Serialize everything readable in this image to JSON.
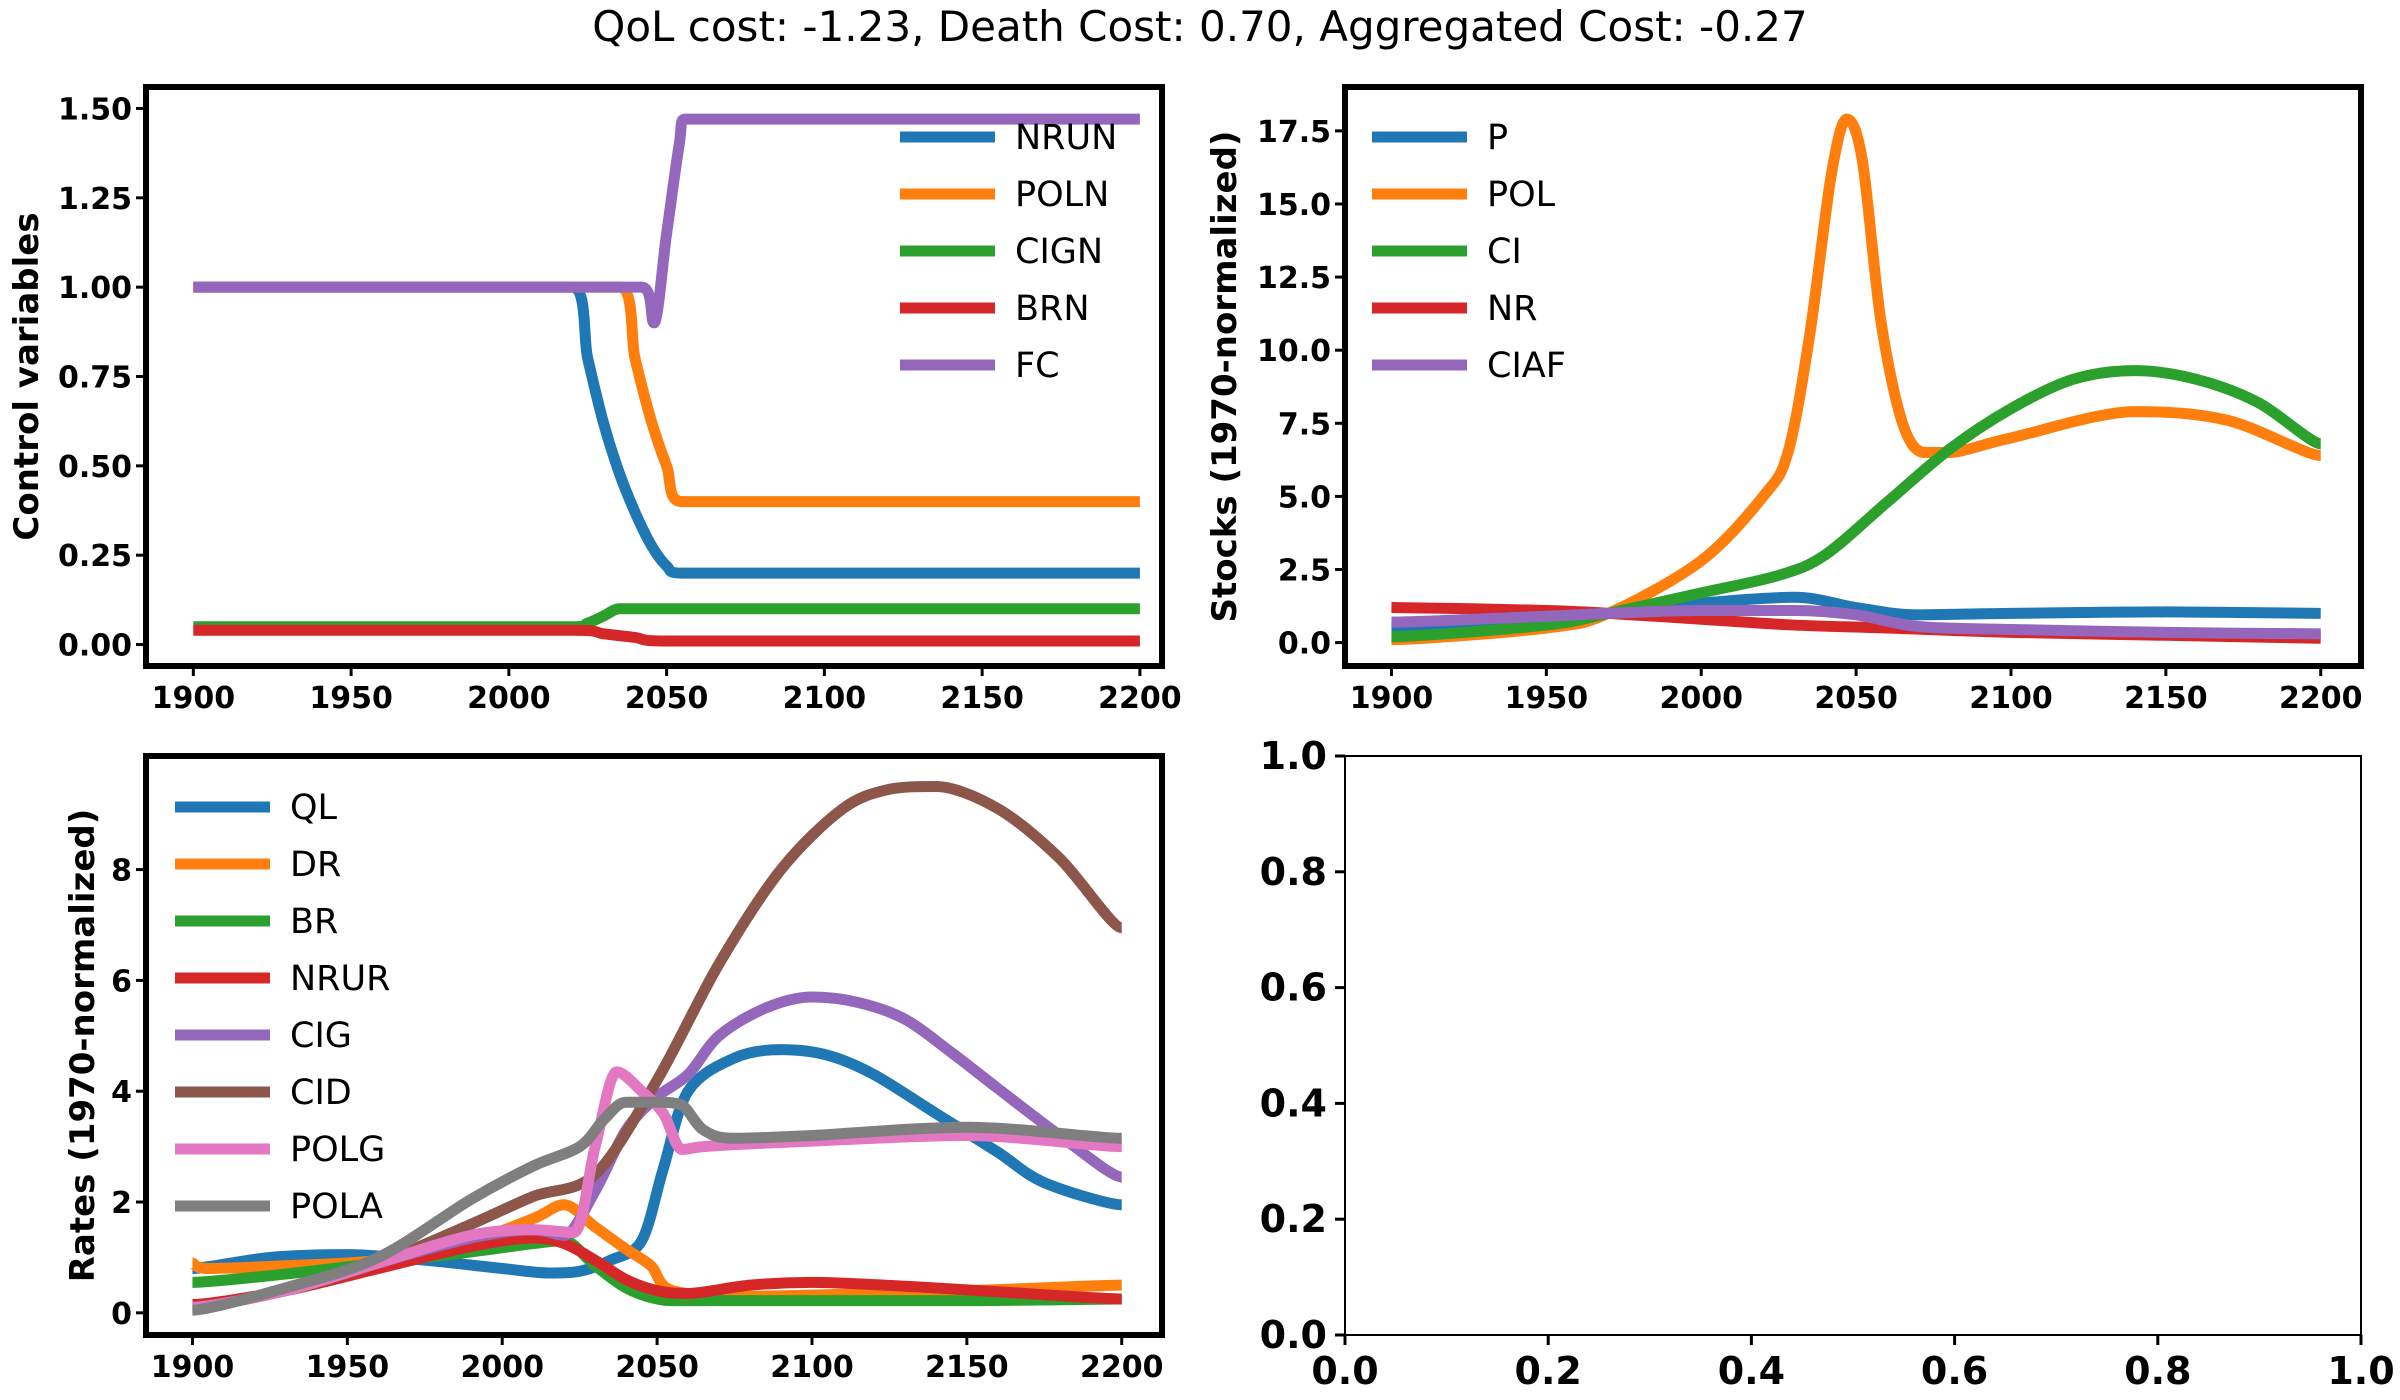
{
  "suptitle": "QoL cost: -1.23, Death Cost: 0.70, Aggregated Cost: -0.27",
  "chart_data": [
    {
      "type": "line",
      "ylabel": "Control variables",
      "xlim": [
        1885,
        2207
      ],
      "ylim": [
        -0.06,
        1.56
      ],
      "xticks": [
        1900,
        1950,
        2000,
        2050,
        2100,
        2150,
        2200
      ],
      "xtick_labels": [
        "1900",
        "1950",
        "2000",
        "2050",
        "2100",
        "2150",
        "2200"
      ],
      "yticks": [
        0,
        0.25,
        0.5,
        0.75,
        1.0,
        1.25,
        1.5
      ],
      "ytick_labels": [
        "0.00",
        "0.25",
        "0.50",
        "0.75",
        "1.00",
        "1.25",
        "1.50"
      ],
      "legend_position": "top-right",
      "series": [
        {
          "name": "NRUN",
          "color": "#1f77b4",
          "x": [
            1900,
            2020,
            2025,
            2030,
            2035,
            2040,
            2045,
            2050,
            2055,
            2200
          ],
          "y": [
            1.0,
            1.0,
            0.8,
            0.62,
            0.48,
            0.37,
            0.28,
            0.22,
            0.2,
            0.2
          ]
        },
        {
          "name": "POLN",
          "color": "#ff7f0e",
          "x": [
            1900,
            2035,
            2040,
            2045,
            2050,
            2055,
            2200
          ],
          "y": [
            1.0,
            1.0,
            0.8,
            0.63,
            0.5,
            0.4,
            0.4
          ]
        },
        {
          "name": "CIGN",
          "color": "#2ca02c",
          "x": [
            1900,
            2020,
            2025,
            2030,
            2035,
            2040,
            2200
          ],
          "y": [
            0.05,
            0.05,
            0.06,
            0.08,
            0.1,
            0.1,
            0.1
          ]
        },
        {
          "name": "BRN",
          "color": "#d62728",
          "x": [
            1900,
            2020,
            2030,
            2040,
            2050,
            2200
          ],
          "y": [
            0.04,
            0.04,
            0.03,
            0.02,
            0.01,
            0.01
          ]
        },
        {
          "name": "FC",
          "color": "#9467bd",
          "x": [
            1900,
            2042,
            2046,
            2050,
            2054,
            2056,
            2200
          ],
          "y": [
            1.0,
            1.0,
            0.9,
            1.15,
            1.4,
            1.47,
            1.47
          ]
        }
      ]
    },
    {
      "type": "line",
      "ylabel": "Stocks (1970-normalized)",
      "xlim": [
        1885,
        2213
      ],
      "ylim": [
        -0.8,
        19.0
      ],
      "xticks": [
        1900,
        1950,
        2000,
        2050,
        2100,
        2150,
        2200
      ],
      "xtick_labels": [
        "1900",
        "1950",
        "2000",
        "2050",
        "2100",
        "2150",
        "2200"
      ],
      "yticks": [
        0,
        2.5,
        5,
        7.5,
        10,
        12.5,
        15,
        17.5
      ],
      "ytick_labels": [
        "0.0",
        "2.5",
        "5.0",
        "7.5",
        "10.0",
        "12.5",
        "15.0",
        "17.5"
      ],
      "legend_position": "top-left",
      "series": [
        {
          "name": "P",
          "color": "#1f77b4",
          "x": [
            1900,
            1930,
            1970,
            2000,
            2030,
            2050,
            2070,
            2100,
            2150,
            2200
          ],
          "y": [
            0.55,
            0.65,
            1.0,
            1.35,
            1.55,
            1.2,
            0.95,
            1.0,
            1.05,
            1.0
          ]
        },
        {
          "name": "POL",
          "color": "#ff7f0e",
          "x": [
            1900,
            1950,
            1970,
            2000,
            2020,
            2028,
            2035,
            2042,
            2047,
            2052,
            2058,
            2065,
            2072,
            2080,
            2100,
            2140,
            2170,
            2200
          ],
          "y": [
            0.1,
            0.5,
            1.0,
            2.8,
            5.0,
            6.5,
            10.5,
            16.0,
            17.9,
            16.5,
            11.0,
            7.5,
            6.5,
            6.5,
            7.0,
            7.9,
            7.6,
            6.4
          ]
        },
        {
          "name": "CI",
          "color": "#2ca02c",
          "x": [
            1900,
            1950,
            1970,
            2000,
            2025,
            2040,
            2060,
            2080,
            2100,
            2120,
            2140,
            2160,
            2180,
            2200
          ],
          "y": [
            0.2,
            0.6,
            1.0,
            1.7,
            2.3,
            3.0,
            4.8,
            6.6,
            8.0,
            9.0,
            9.3,
            9.0,
            8.2,
            6.8
          ]
        },
        {
          "name": "NR",
          "color": "#d62728",
          "x": [
            1900,
            1950,
            1970,
            2000,
            2030,
            2060,
            2100,
            2150,
            2200
          ],
          "y": [
            1.2,
            1.1,
            1.0,
            0.8,
            0.6,
            0.5,
            0.35,
            0.25,
            0.15
          ]
        },
        {
          "name": "CIAF",
          "color": "#9467bd",
          "x": [
            1900,
            1950,
            1970,
            2000,
            2030,
            2050,
            2070,
            2100,
            2150,
            2200
          ],
          "y": [
            0.7,
            0.9,
            1.0,
            1.1,
            1.1,
            0.95,
            0.55,
            0.45,
            0.35,
            0.3
          ]
        }
      ]
    },
    {
      "type": "line",
      "ylabel": "Rates (1970-normalized)",
      "xlim": [
        1885,
        2213
      ],
      "ylim": [
        -0.4,
        10.05
      ],
      "xticks": [
        1900,
        1950,
        2000,
        2050,
        2100,
        2150,
        2200
      ],
      "xtick_labels": [
        "1900",
        "1950",
        "2000",
        "2050",
        "2100",
        "2150",
        "2200"
      ],
      "yticks": [
        0,
        2,
        4,
        6,
        8
      ],
      "ytick_labels": [
        "0",
        "2",
        "4",
        "6",
        "8"
      ],
      "legend_position": "top-left",
      "series": [
        {
          "name": "QL",
          "color": "#1f77b4",
          "x": [
            1900,
            1925,
            1950,
            1975,
            2000,
            2015,
            2025,
            2035,
            2045,
            2052,
            2060,
            2075,
            2090,
            2105,
            2120,
            2140,
            2160,
            2175,
            2200
          ],
          "y": [
            0.8,
            1.0,
            1.05,
            0.95,
            0.8,
            0.72,
            0.75,
            0.95,
            1.3,
            2.6,
            4.0,
            4.6,
            4.75,
            4.65,
            4.3,
            3.6,
            2.9,
            2.35,
            1.95
          ]
        },
        {
          "name": "DR",
          "color": "#ff7f0e",
          "x": [
            1900,
            1905,
            1930,
            1960,
            1990,
            2010,
            2020,
            2030,
            2040,
            2048,
            2055,
            2080,
            2120,
            2160,
            2200
          ],
          "y": [
            0.9,
            0.8,
            0.85,
            0.95,
            1.3,
            1.7,
            1.95,
            1.55,
            1.15,
            0.85,
            0.4,
            0.3,
            0.35,
            0.42,
            0.5
          ]
        },
        {
          "name": "BR",
          "color": "#2ca02c",
          "x": [
            1900,
            1930,
            1960,
            1990,
            2010,
            2020,
            2030,
            2040,
            2050,
            2060,
            2100,
            2150,
            2200
          ],
          "y": [
            0.55,
            0.7,
            0.9,
            1.1,
            1.25,
            1.3,
            0.85,
            0.45,
            0.25,
            0.22,
            0.22,
            0.22,
            0.25
          ]
        },
        {
          "name": "NRUR",
          "color": "#d62728",
          "x": [
            1900,
            1930,
            1960,
            1990,
            2010,
            2020,
            2030,
            2040,
            2050,
            2060,
            2080,
            2100,
            2130,
            2160,
            2200
          ],
          "y": [
            0.15,
            0.4,
            0.8,
            1.2,
            1.35,
            1.25,
            0.95,
            0.6,
            0.4,
            0.35,
            0.5,
            0.55,
            0.48,
            0.38,
            0.25
          ]
        },
        {
          "name": "CIG",
          "color": "#9467bd",
          "x": [
            1900,
            1930,
            1960,
            1990,
            2010,
            2020,
            2030,
            2040,
            2050,
            2060,
            2070,
            2085,
            2100,
            2115,
            2130,
            2145,
            2160,
            2180,
            2200
          ],
          "y": [
            0.1,
            0.4,
            0.9,
            1.35,
            1.5,
            1.4,
            2.2,
            3.3,
            3.9,
            4.3,
            5.0,
            5.5,
            5.7,
            5.6,
            5.3,
            4.7,
            4.05,
            3.2,
            2.45
          ]
        },
        {
          "name": "CID",
          "color": "#8c564b",
          "x": [
            1900,
            1930,
            1960,
            1990,
            2010,
            2030,
            2050,
            2070,
            2090,
            2110,
            2125,
            2140,
            2160,
            2180,
            2200
          ],
          "y": [
            0.1,
            0.4,
            0.9,
            1.6,
            2.1,
            2.5,
            4.2,
            6.3,
            8.0,
            9.1,
            9.45,
            9.5,
            9.1,
            8.2,
            6.95
          ]
        },
        {
          "name": "POLG",
          "color": "#e377c2",
          "x": [
            1900,
            1930,
            1960,
            1990,
            2010,
            2023,
            2030,
            2037,
            2045,
            2052,
            2058,
            2065,
            2080,
            2100,
            2150,
            2200
          ],
          "y": [
            0.1,
            0.4,
            0.9,
            1.4,
            1.5,
            1.45,
            3.0,
            4.35,
            4.0,
            3.6,
            2.95,
            3.0,
            3.05,
            3.1,
            3.2,
            3.0
          ]
        },
        {
          "name": "POLA",
          "color": "#7f7f7f",
          "x": [
            1900,
            1930,
            1960,
            1990,
            2010,
            2025,
            2033,
            2040,
            2050,
            2058,
            2065,
            2075,
            2100,
            2150,
            2200
          ],
          "y": [
            0.05,
            0.45,
            1.0,
            2.05,
            2.65,
            3.0,
            3.5,
            3.8,
            3.8,
            3.75,
            3.3,
            3.15,
            3.2,
            3.35,
            3.15
          ]
        }
      ]
    },
    {
      "type": "line",
      "xlim": [
        0,
        1
      ],
      "ylim": [
        0,
        1
      ],
      "xticks": [
        0,
        0.2,
        0.4,
        0.6,
        0.8,
        1.0
      ],
      "xtick_labels": [
        "0.0",
        "0.2",
        "0.4",
        "0.6",
        "0.8",
        "1.0"
      ],
      "yticks": [
        0,
        0.2,
        0.4,
        0.6,
        0.8,
        1.0
      ],
      "ytick_labels": [
        "0.0",
        "0.2",
        "0.4",
        "0.6",
        "0.8",
        "1.0"
      ],
      "series": []
    }
  ]
}
